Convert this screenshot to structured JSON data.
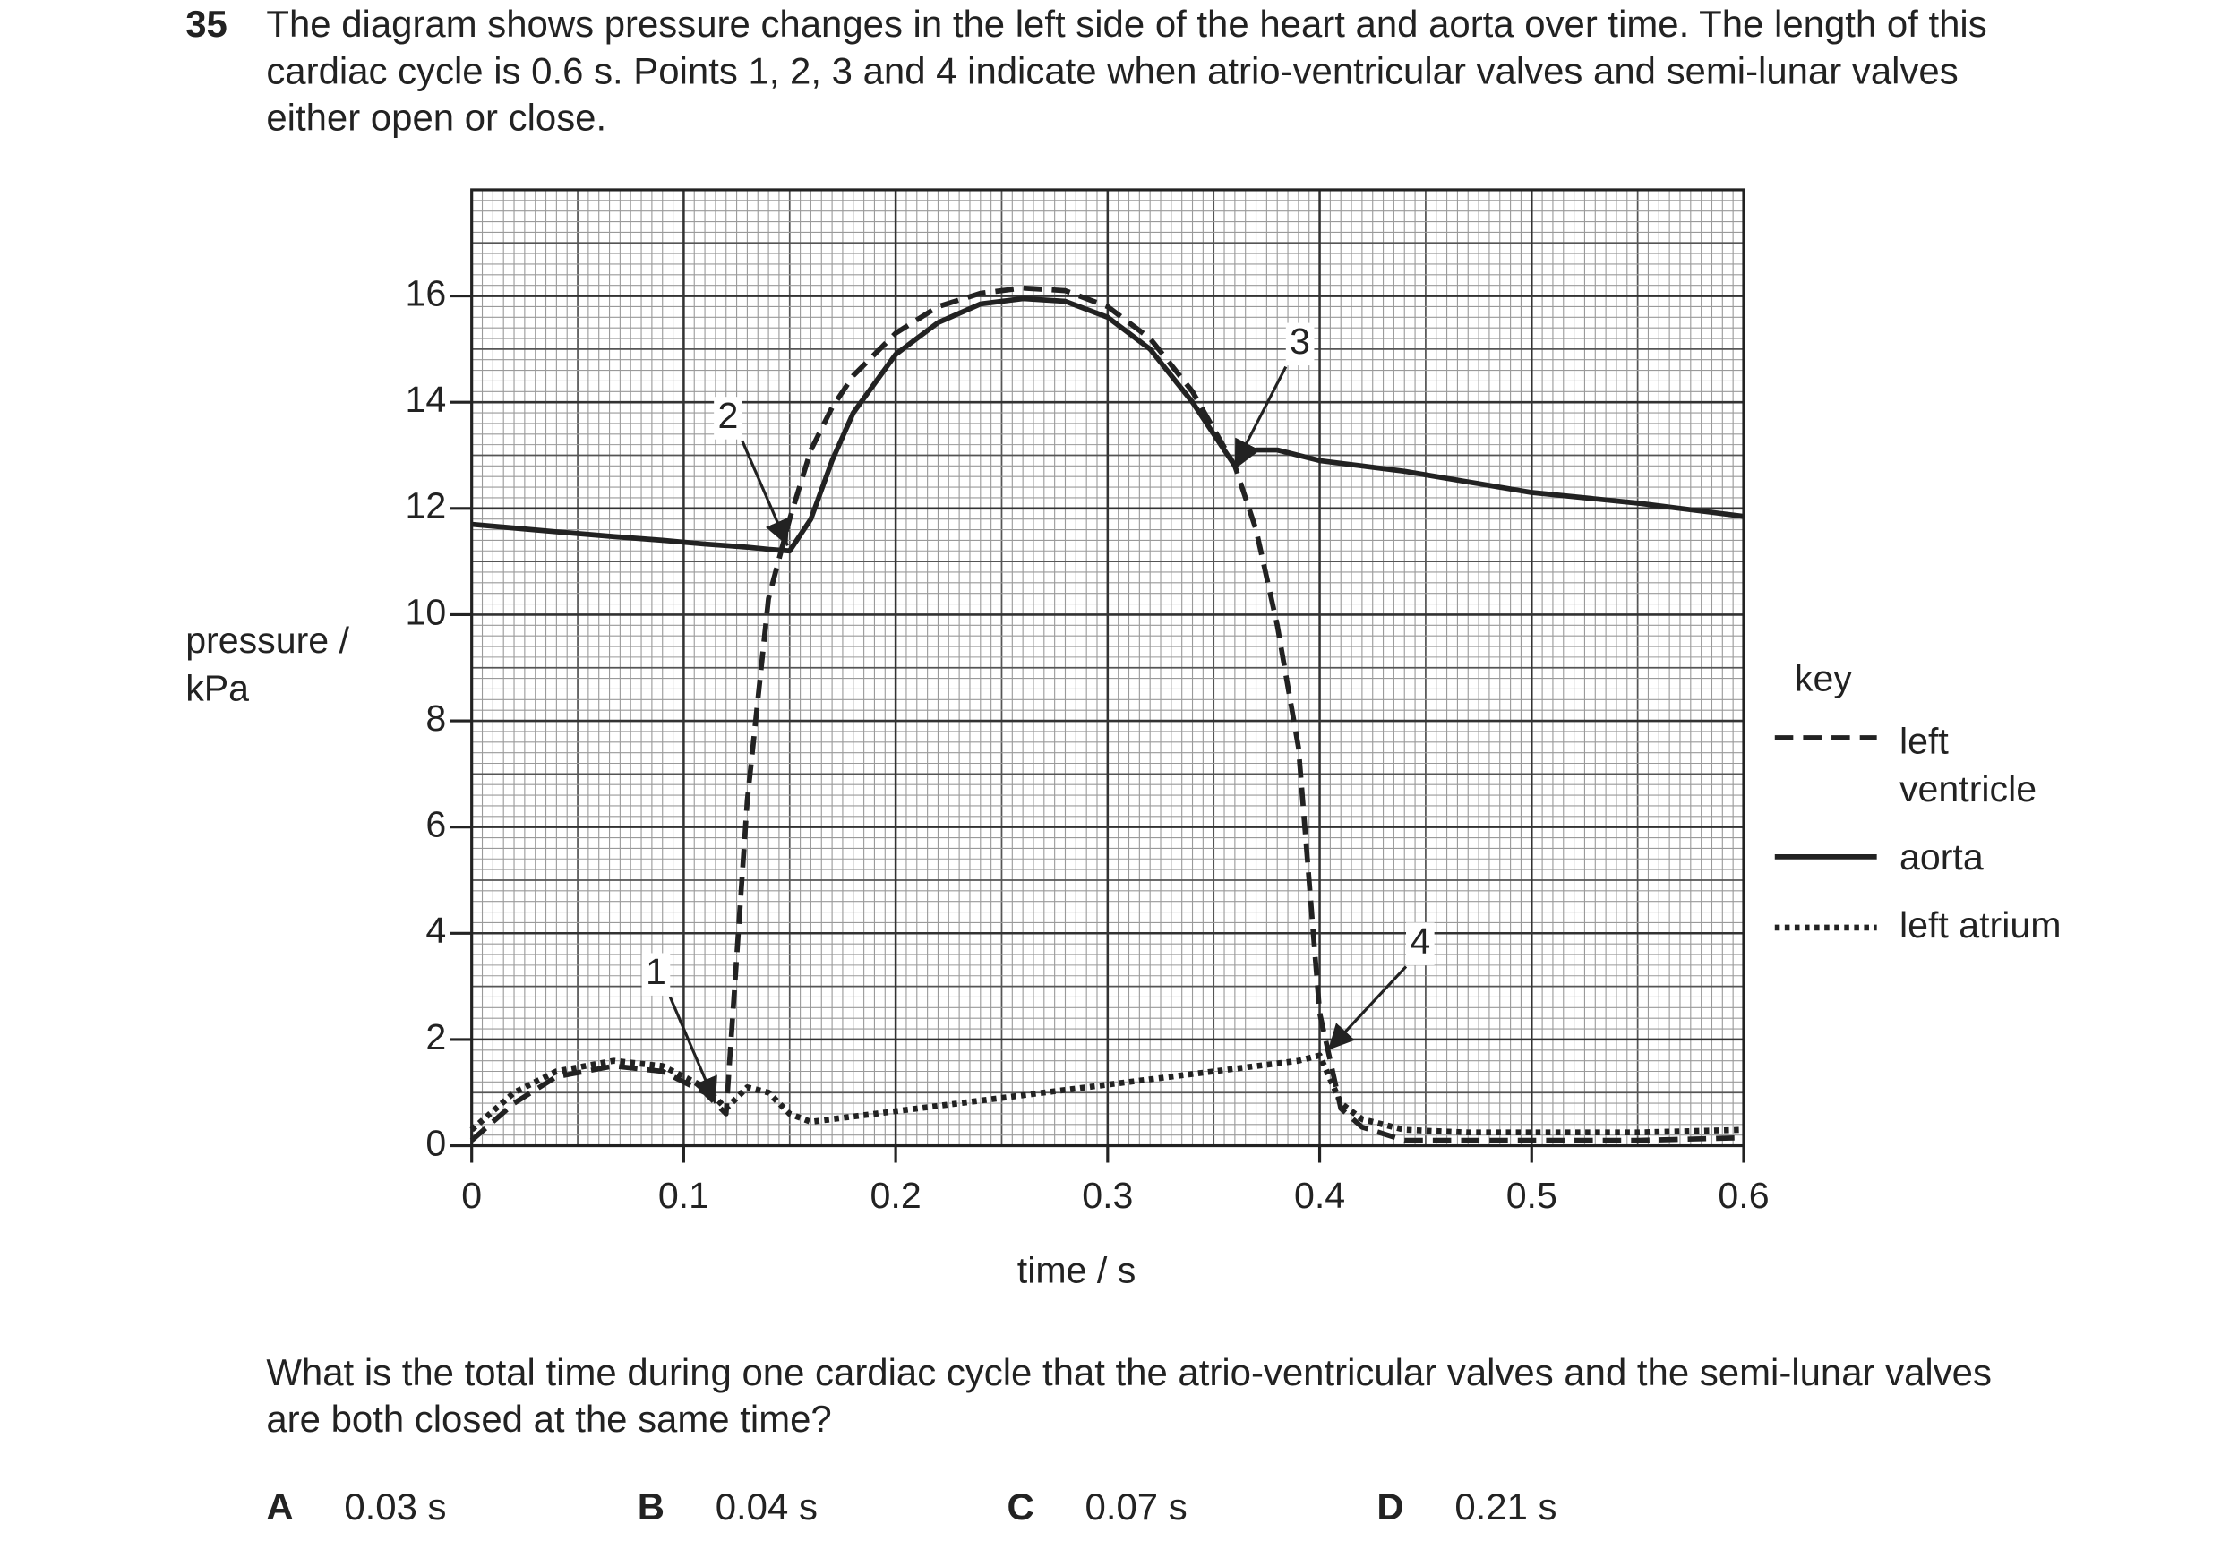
{
  "question": {
    "number": "35",
    "stem": "The diagram shows pressure changes in the left side of the heart and aorta over time. The length of this cardiac cycle is 0.6 s. Points 1, 2, 3 and 4 indicate when atrio-ventricular valves and semi-lunar valves either open or close.",
    "prompt": "What is the total time during one cardiac cycle that the atrio-ventricular valves and the semi-lunar valves are both closed at the same time?",
    "options": [
      {
        "letter": "A",
        "text": "0.03 s"
      },
      {
        "letter": "B",
        "text": "0.04 s"
      },
      {
        "letter": "C",
        "text": "0.07 s"
      },
      {
        "letter": "D",
        "text": "0.21 s"
      }
    ]
  },
  "chart_data": {
    "type": "line",
    "xlabel": "time / s",
    "ylabel": [
      "pressure /",
      "kPa"
    ],
    "x": [
      0,
      0.02,
      0.04,
      0.067,
      0.09,
      0.11,
      0.12,
      0.13,
      0.14,
      0.15,
      0.16,
      0.17,
      0.18,
      0.2,
      0.22,
      0.24,
      0.26,
      0.28,
      0.3,
      0.32,
      0.34,
      0.36,
      0.37,
      0.38,
      0.39,
      0.4,
      0.41,
      0.42,
      0.44,
      0.47,
      0.5,
      0.55,
      0.6
    ],
    "series": [
      {
        "name": "left ventricle",
        "color": "#222222",
        "dash": "dashed",
        "values": [
          0.1,
          0.8,
          1.3,
          1.5,
          1.4,
          1.0,
          0.6,
          6.5,
          10.3,
          11.8,
          13.1,
          13.9,
          14.5,
          15.3,
          15.8,
          16.05,
          16.15,
          16.1,
          15.8,
          15.2,
          14.2,
          12.8,
          11.6,
          9.8,
          7.5,
          2.5,
          0.7,
          0.35,
          0.1,
          0.1,
          0.1,
          0.1,
          0.15
        ]
      },
      {
        "name": "aorta",
        "color": "#222222",
        "dash": "solid",
        "values": [
          11.7,
          11.63,
          11.56,
          11.47,
          11.4,
          11.33,
          11.3,
          11.27,
          11.23,
          11.2,
          11.8,
          12.9,
          13.8,
          14.9,
          15.5,
          15.85,
          15.95,
          15.9,
          15.6,
          15.0,
          14.0,
          12.8,
          13.1,
          13.1,
          13.0,
          12.9,
          12.85,
          12.8,
          12.7,
          12.5,
          12.3,
          12.1,
          11.85
        ]
      },
      {
        "name": "left atrium",
        "color": "#222222",
        "dash": "dotted",
        "values": [
          0.3,
          1.0,
          1.4,
          1.6,
          1.5,
          1.1,
          0.7,
          1.1,
          1.0,
          0.6,
          0.45,
          0.5,
          0.55,
          0.65,
          0.75,
          0.85,
          0.95,
          1.05,
          1.15,
          1.25,
          1.35,
          1.45,
          1.5,
          1.55,
          1.6,
          1.7,
          0.8,
          0.5,
          0.3,
          0.25,
          0.25,
          0.25,
          0.3
        ]
      }
    ],
    "xlim": [
      0,
      0.6
    ],
    "ylim": [
      0,
      18
    ],
    "xticks": [
      0,
      0.1,
      0.2,
      0.3,
      0.4,
      0.5,
      0.6
    ],
    "yticks": [
      0,
      2,
      4,
      6,
      8,
      10,
      12,
      14,
      16
    ],
    "grid": true,
    "legend_title": "key",
    "legend": "right",
    "annotations": [
      {
        "text": "1",
        "x": 0.115,
        "y": 0.8
      },
      {
        "text": "2",
        "x": 0.149,
        "y": 11.3
      },
      {
        "text": "3",
        "x": 0.36,
        "y": 12.8
      },
      {
        "text": "4",
        "x": 0.404,
        "y": 1.8
      }
    ]
  }
}
